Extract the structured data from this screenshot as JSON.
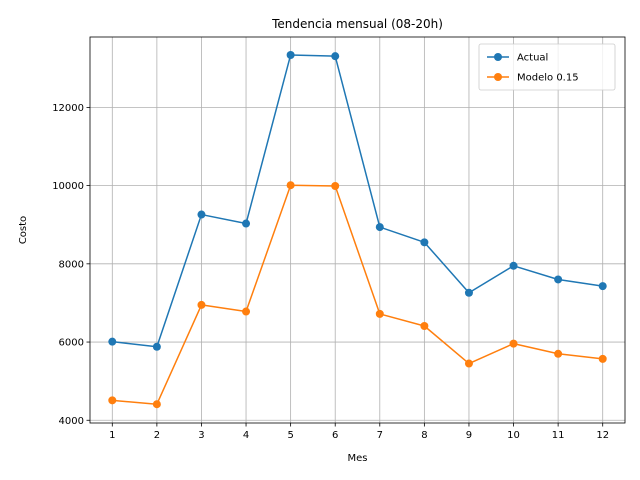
{
  "chart_data": {
    "type": "line",
    "title": "Tendencia mensual (08-20h)",
    "xlabel": "Mes",
    "ylabel": "Costo",
    "x": [
      1,
      2,
      3,
      4,
      5,
      6,
      7,
      8,
      9,
      10,
      11,
      12
    ],
    "x_ticks": [
      1,
      2,
      3,
      4,
      5,
      6,
      7,
      8,
      9,
      10,
      11,
      12
    ],
    "xlim": [
      0.5,
      12.5
    ],
    "y_ticks": [
      4000,
      6000,
      8000,
      10000,
      12000
    ],
    "ylim": [
      3930,
      13800
    ],
    "grid": true,
    "legend_position": "top-right",
    "series": [
      {
        "name": "Actual",
        "color": "#1f77b4",
        "values": [
          6010,
          5880,
          9260,
          9030,
          13340,
          13310,
          8940,
          8550,
          7260,
          7950,
          7600,
          7430
        ]
      },
      {
        "name": "Modelo 0.15",
        "color": "#ff7f0e",
        "values": [
          4510,
          4410,
          6950,
          6780,
          10010,
          9990,
          6720,
          6410,
          5450,
          5960,
          5700,
          5570
        ]
      }
    ]
  }
}
